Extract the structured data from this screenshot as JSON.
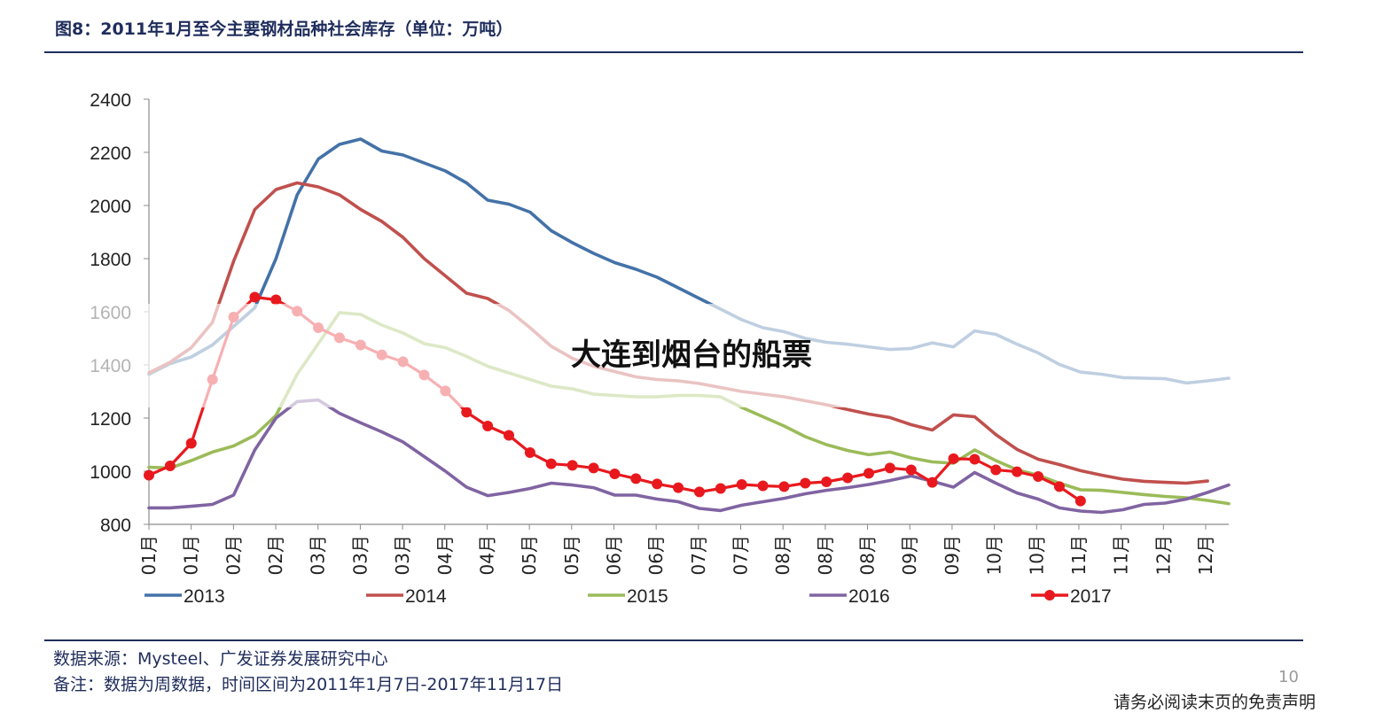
{
  "header": {
    "title": "图8：2011年1月至今主要钢材品种社会库存（单位：万吨）"
  },
  "chart_data": {
    "type": "line",
    "ylim": [
      800,
      2400
    ],
    "yticks": [
      800,
      1000,
      1200,
      1400,
      1600,
      1800,
      2000,
      2200,
      2400
    ],
    "xticks": [
      "01月",
      "01月",
      "02月",
      "02月",
      "03月",
      "03月",
      "03月",
      "04月",
      "04月",
      "05月",
      "05月",
      "06月",
      "06月",
      "07月",
      "07月",
      "08月",
      "08月",
      "08月",
      "09月",
      "09月",
      "10月",
      "10月",
      "11月",
      "11月",
      "12月",
      "12月"
    ],
    "legend_position": "bottom",
    "series": [
      {
        "name": "2013",
        "color": "#4472a8",
        "marker": false,
        "values": [
          1365,
          1405,
          1430,
          1475,
          1545,
          1615,
          1800,
          2040,
          2175,
          2230,
          2250,
          2205,
          2190,
          2160,
          2130,
          2085,
          2020,
          2005,
          1975,
          1905,
          1860,
          1820,
          1785,
          1760,
          1730,
          1690,
          1650,
          1610,
          1570,
          1540,
          1525,
          1500,
          1485,
          1478,
          1468,
          1458,
          1462,
          1483,
          1468,
          1528,
          1515,
          1478,
          1445,
          1402,
          1373,
          1365,
          1352,
          1350,
          1348,
          1332,
          1340,
          1350
        ]
      },
      {
        "name": "2014",
        "color": "#c0504d",
        "marker": false,
        "values": [
          1370,
          1410,
          1465,
          1560,
          1790,
          1985,
          2060,
          2085,
          2070,
          2040,
          1985,
          1940,
          1880,
          1800,
          1735,
          1670,
          1650,
          1605,
          1540,
          1470,
          1425,
          1395,
          1375,
          1355,
          1345,
          1340,
          1330,
          1315,
          1300,
          1290,
          1280,
          1265,
          1250,
          1232,
          1215,
          1202,
          1175,
          1155,
          1212,
          1205,
          1138,
          1082,
          1045,
          1025,
          1002,
          985,
          970,
          962,
          958,
          955,
          963
        ]
      },
      {
        "name": "2015",
        "color": "#9bbb59",
        "marker": false,
        "values": [
          1015,
          1012,
          1040,
          1072,
          1095,
          1135,
          1210,
          1365,
          1480,
          1597,
          1590,
          1550,
          1520,
          1480,
          1465,
          1432,
          1395,
          1370,
          1345,
          1320,
          1310,
          1290,
          1285,
          1280,
          1280,
          1285,
          1285,
          1280,
          1240,
          1205,
          1170,
          1130,
          1100,
          1078,
          1062,
          1072,
          1050,
          1035,
          1030,
          1080,
          1040,
          1005,
          985,
          955,
          930,
          928,
          920,
          912,
          905,
          900,
          890,
          878
        ]
      },
      {
        "name": "2016",
        "color": "#8064a2",
        "marker": false,
        "values": [
          862,
          862,
          868,
          875,
          910,
          1080,
          1200,
          1262,
          1268,
          1218,
          1182,
          1148,
          1110,
          1055,
          1000,
          940,
          908,
          920,
          935,
          955,
          948,
          938,
          910,
          910,
          895,
          885,
          860,
          852,
          872,
          885,
          898,
          915,
          928,
          938,
          950,
          965,
          982,
          962,
          940,
          995,
          955,
          918,
          895,
          862,
          850,
          845,
          855,
          875,
          880,
          895,
          920,
          948
        ]
      },
      {
        "name": "2017",
        "color": "#e8191e",
        "marker": true,
        "values": [
          985,
          1020,
          1105,
          1345,
          1580,
          1655,
          1645,
          1602,
          1540,
          1502,
          1475,
          1438,
          1412,
          1362,
          1302,
          1222,
          1170,
          1135,
          1070,
          1028,
          1022,
          1012,
          990,
          972,
          952,
          938,
          922,
          935,
          950,
          945,
          942,
          955,
          960,
          975,
          992,
          1012,
          1005,
          958,
          1047,
          1045,
          1005,
          998,
          980,
          942,
          888
        ]
      }
    ]
  },
  "overlay": {
    "text": "大连到烟台的船票"
  },
  "footer": {
    "source": "数据来源：Mysteel、广发证券发展研究中心",
    "note": "备注：数据为周数据，时间区间为2011年1月7日-2017年11月17日",
    "page_number": "10",
    "disclaimer": "请务必阅读末页的免责声明"
  }
}
